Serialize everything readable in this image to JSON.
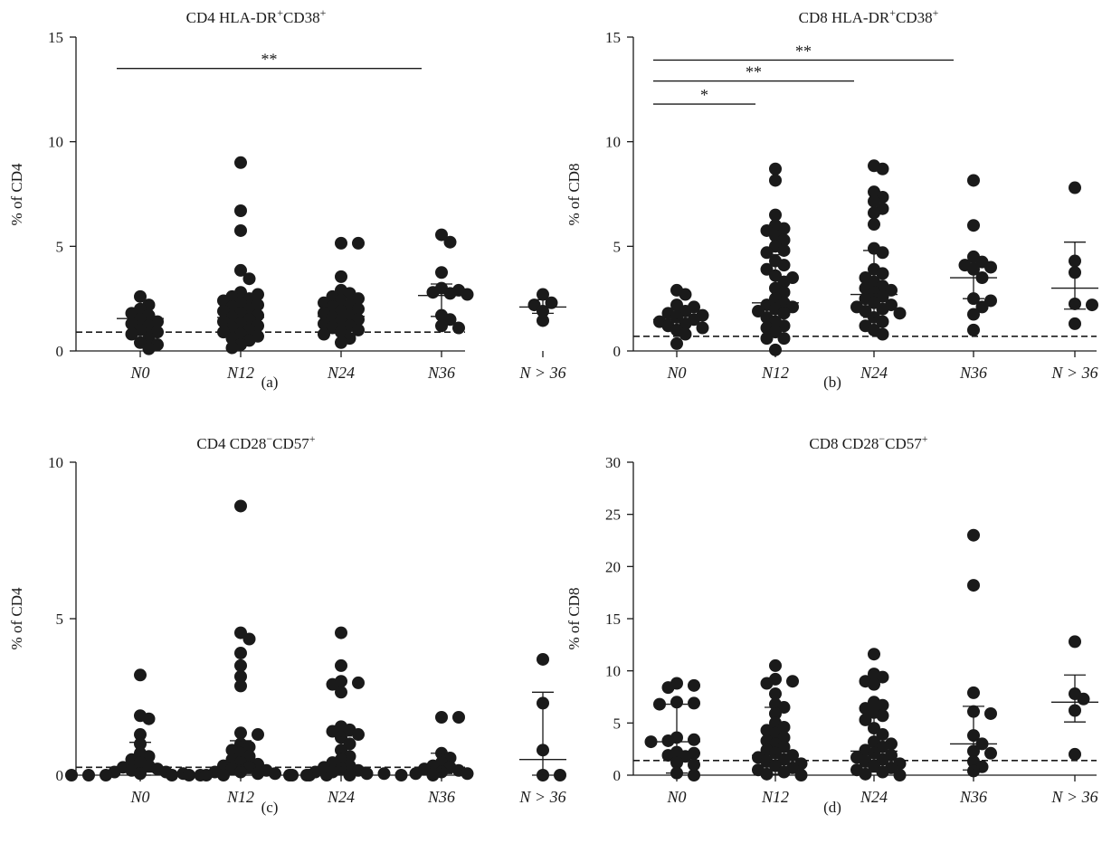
{
  "chart_data": [
    {
      "type": "scatter",
      "panel": "(a)",
      "title": "CD4 HLA-DR+CD38+",
      "title_parts": {
        "base1": "CD4 HLA-DR",
        "sup1": "+",
        "base2": "CD38",
        "sup2": "+"
      },
      "ylabel": "% of CD4",
      "ylim": [
        0,
        15
      ],
      "yticks": [
        0,
        5,
        10,
        15
      ],
      "categories": [
        "N0",
        "N12",
        "N24",
        "N36",
        "N > 36"
      ],
      "reference_line": 0.9,
      "medians": [
        1.55,
        1.6,
        1.65,
        2.65,
        2.1
      ],
      "error_low": [
        null,
        null,
        null,
        1.65,
        1.8
      ],
      "error_high": [
        null,
        null,
        null,
        3.2,
        2.45
      ],
      "points": [
        [
          2.6,
          2.2,
          2.0,
          1.8,
          1.7,
          1.5,
          1.4,
          1.3,
          1.2,
          1.0,
          0.9,
          0.8,
          0.6,
          0.4,
          0.3,
          0.1
        ],
        [
          9.0,
          6.7,
          5.75,
          3.85,
          3.45,
          2.8,
          2.7,
          2.6,
          2.5,
          2.4,
          2.3,
          2.2,
          2.1,
          2.0,
          1.9,
          1.8,
          1.7,
          1.6,
          1.5,
          1.4,
          1.3,
          1.2,
          1.1,
          1.0,
          0.9,
          0.8,
          0.7,
          0.6,
          0.5,
          0.3,
          0.15
        ],
        [
          5.15,
          5.15,
          3.55,
          2.9,
          2.75,
          2.6,
          2.5,
          2.4,
          2.3,
          2.2,
          2.1,
          2.0,
          1.9,
          1.8,
          1.7,
          1.6,
          1.5,
          1.4,
          1.3,
          1.2,
          1.1,
          1.0,
          0.9,
          0.8,
          0.6,
          0.4
        ],
        [
          5.55,
          5.2,
          3.75,
          3.0,
          2.9,
          2.8,
          2.75,
          2.7,
          1.7,
          1.5,
          1.2,
          1.1
        ],
        [
          2.7,
          2.3,
          2.2,
          1.9,
          1.45
        ]
      ],
      "significance": [
        {
          "from": 0,
          "to": 3,
          "label": "**",
          "y": 13.5
        }
      ]
    },
    {
      "type": "scatter",
      "panel": "(b)",
      "title": "CD8 HLA-DR+CD38+",
      "title_parts": {
        "base1": "CD8 HLA-DR",
        "sup1": "+",
        "base2": "CD38",
        "sup2": "+"
      },
      "ylabel": "% of CD8",
      "ylim": [
        0,
        15
      ],
      "yticks": [
        0,
        5,
        10,
        15
      ],
      "categories": [
        "N0",
        "N12",
        "N24",
        "N36",
        "N > 36"
      ],
      "reference_line": 0.7,
      "medians": [
        1.5,
        2.3,
        2.7,
        3.5,
        3.0
      ],
      "error_low": [
        1.2,
        1.4,
        1.6,
        2.5,
        2.0
      ],
      "error_high": [
        1.9,
        4.6,
        4.8,
        4.2,
        5.2
      ],
      "points": [
        [
          2.9,
          2.7,
          2.2,
          2.1,
          1.9,
          1.8,
          1.7,
          1.6,
          1.5,
          1.4,
          1.3,
          1.2,
          1.1,
          1.0,
          0.8,
          0.35
        ],
        [
          8.7,
          8.15,
          6.5,
          6.0,
          5.85,
          5.75,
          5.5,
          5.3,
          5.0,
          4.8,
          4.7,
          4.3,
          4.1,
          3.9,
          3.6,
          3.5,
          3.3,
          3.0,
          2.8,
          2.5,
          2.3,
          2.2,
          2.1,
          2.0,
          1.9,
          1.8,
          1.6,
          1.4,
          1.2,
          1.1,
          0.9,
          0.6,
          0.6,
          0.05
        ],
        [
          8.85,
          8.7,
          7.6,
          7.35,
          7.15,
          6.8,
          6.6,
          6.05,
          4.9,
          4.7,
          3.9,
          3.7,
          3.5,
          3.3,
          3.1,
          3.0,
          2.9,
          2.8,
          2.6,
          2.5,
          2.3,
          2.2,
          2.1,
          2.0,
          1.9,
          1.8,
          1.6,
          1.4,
          1.2,
          1.0,
          0.8
        ],
        [
          8.15,
          6.0,
          4.5,
          4.25,
          4.1,
          4.0,
          3.9,
          3.5,
          2.5,
          2.4,
          2.1,
          1.75,
          1.0
        ],
        [
          7.8,
          4.3,
          3.75,
          2.25,
          2.2,
          1.3
        ]
      ],
      "significance": [
        {
          "from": 0,
          "to": 1,
          "label": "*",
          "y": 11.8
        },
        {
          "from": 0,
          "to": 2,
          "label": "**",
          "y": 12.9
        },
        {
          "from": 0,
          "to": 3,
          "label": "**",
          "y": 13.9
        }
      ]
    },
    {
      "type": "scatter",
      "panel": "(c)",
      "title": "CD4 CD28−CD57+",
      "title_parts": {
        "base1": "CD4 CD28",
        "sup1": "−",
        "base2": "CD57",
        "sup2": "+"
      },
      "ylabel": "% of CD4",
      "ylim": [
        0,
        10
      ],
      "yticks": [
        0,
        5,
        10
      ],
      "categories": [
        "N0",
        "N12",
        "N24",
        "N36",
        "N > 36"
      ],
      "reference_line": 0.25,
      "medians": [
        0.1,
        0.3,
        0.25,
        0.2,
        0.5
      ],
      "error_low": [
        0.0,
        0.05,
        0.05,
        0.05,
        0.0
      ],
      "error_high": [
        1.05,
        1.1,
        1.25,
        0.7,
        2.65
      ],
      "points": [
        [
          3.2,
          1.9,
          1.8,
          1.3,
          1.0,
          0.7,
          0.6,
          0.5,
          0.4,
          0.3,
          0.25,
          0.2,
          0.15,
          0.1,
          0.1,
          0.05,
          0.05,
          0.0,
          0.0,
          0.0,
          0.0
        ],
        [
          8.6,
          4.55,
          4.35,
          3.9,
          3.5,
          3.15,
          2.85,
          1.35,
          1.3,
          1.0,
          0.9,
          0.8,
          0.7,
          0.6,
          0.5,
          0.4,
          0.35,
          0.3,
          0.25,
          0.2,
          0.15,
          0.1,
          0.1,
          0.05,
          0.05,
          0.0,
          0.0,
          0.0,
          0.0,
          0.0,
          0.0,
          0.0
        ],
        [
          4.55,
          3.5,
          3.0,
          2.95,
          2.9,
          2.65,
          1.55,
          1.45,
          1.4,
          1.3,
          1.2,
          1.0,
          0.8,
          0.6,
          0.5,
          0.4,
          0.3,
          0.25,
          0.2,
          0.15,
          0.1,
          0.1,
          0.05,
          0.05,
          0.0,
          0.0,
          0.0,
          0.0
        ],
        [
          1.85,
          1.85,
          0.7,
          0.55,
          0.4,
          0.3,
          0.25,
          0.2,
          0.15,
          0.1,
          0.05,
          0.05,
          0.0
        ],
        [
          3.7,
          2.3,
          0.8,
          0.0,
          0.0
        ]
      ],
      "significance": []
    },
    {
      "type": "scatter",
      "panel": "(d)",
      "title": "CD8 CD28−CD57+",
      "title_parts": {
        "base1": "CD8 CD28",
        "sup1": "−",
        "base2": "CD57",
        "sup2": "+"
      },
      "ylabel": "% of CD8",
      "ylim": [
        0,
        30
      ],
      "yticks": [
        0,
        5,
        10,
        15,
        20,
        25,
        30
      ],
      "categories": [
        "N0",
        "N12",
        "N24",
        "N36",
        "N > 36"
      ],
      "reference_line": 1.4,
      "medians": [
        3.2,
        1.9,
        2.3,
        3.0,
        7.0
      ],
      "error_low": [
        0.2,
        0.1,
        0.3,
        0.5,
        5.1
      ],
      "error_high": [
        6.8,
        6.5,
        6.6,
        6.6,
        9.6
      ],
      "points": [
        [
          8.8,
          8.6,
          8.4,
          7.0,
          6.9,
          6.8,
          3.6,
          3.4,
          3.3,
          3.2,
          2.2,
          2.1,
          1.9,
          1.8,
          1.2,
          1.0,
          0.2,
          0.0
        ],
        [
          10.5,
          9.2,
          9.0,
          8.8,
          7.8,
          6.8,
          6.5,
          5.9,
          5.0,
          4.6,
          4.3,
          4.0,
          3.6,
          3.3,
          3.0,
          2.7,
          2.4,
          2.1,
          1.9,
          1.7,
          1.5,
          1.3,
          1.1,
          0.9,
          0.7,
          0.5,
          0.3,
          0.1,
          0.0
        ],
        [
          11.6,
          9.7,
          9.4,
          9.0,
          8.7,
          7.0,
          6.7,
          6.4,
          6.0,
          5.7,
          5.3,
          4.5,
          3.9,
          3.2,
          3.0,
          2.7,
          2.4,
          2.1,
          1.9,
          1.7,
          1.5,
          1.3,
          1.1,
          0.9,
          0.7,
          0.5,
          0.3,
          0.1,
          0.0
        ],
        [
          23.0,
          18.2,
          7.9,
          6.1,
          5.9,
          3.8,
          3.0,
          2.3,
          2.1,
          1.3,
          0.8,
          0.4
        ],
        [
          12.8,
          7.8,
          7.3,
          6.2,
          2.0
        ]
      ],
      "significance": []
    }
  ]
}
